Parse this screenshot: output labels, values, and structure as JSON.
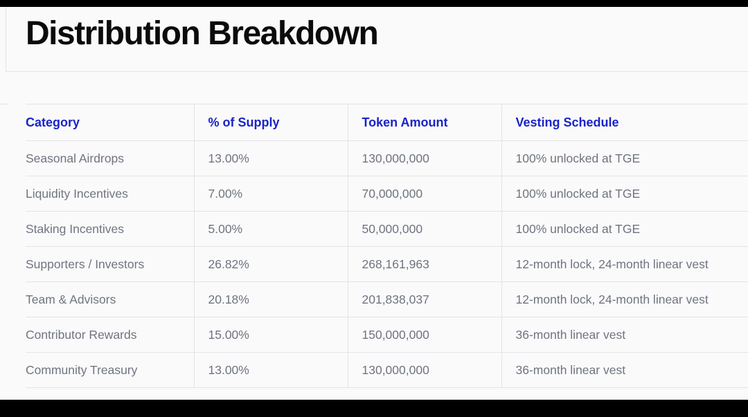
{
  "page": {
    "title": "Distribution Breakdown"
  },
  "colors": {
    "header_text": "#1a23c9",
    "body_text": "#6f7480",
    "title_text": "#0b0b0b",
    "background": "#fafafa",
    "rule": "#e4e4e7"
  },
  "table": {
    "columns": [
      "Category",
      "% of Supply",
      "Token Amount",
      "Vesting Schedule"
    ],
    "rows": [
      [
        "Seasonal Airdrops",
        "13.00%",
        "130,000,000",
        "100% unlocked at TGE"
      ],
      [
        "Liquidity Incentives",
        "7.00%",
        "70,000,000",
        "100% unlocked at TGE"
      ],
      [
        "Staking Incentives",
        "5.00%",
        "50,000,000",
        "100% unlocked at TGE"
      ],
      [
        "Supporters / Investors",
        "26.82%",
        "268,161,963",
        "12-month lock, 24-month linear vest"
      ],
      [
        "Team & Advisors",
        "20.18%",
        "201,838,037",
        "12-month lock, 24-month linear vest"
      ],
      [
        "Contributor Rewards",
        "15.00%",
        "150,000,000",
        "36-month linear vest"
      ],
      [
        "Community Treasury",
        "13.00%",
        "130,000,000",
        "36-month linear vest"
      ]
    ]
  }
}
